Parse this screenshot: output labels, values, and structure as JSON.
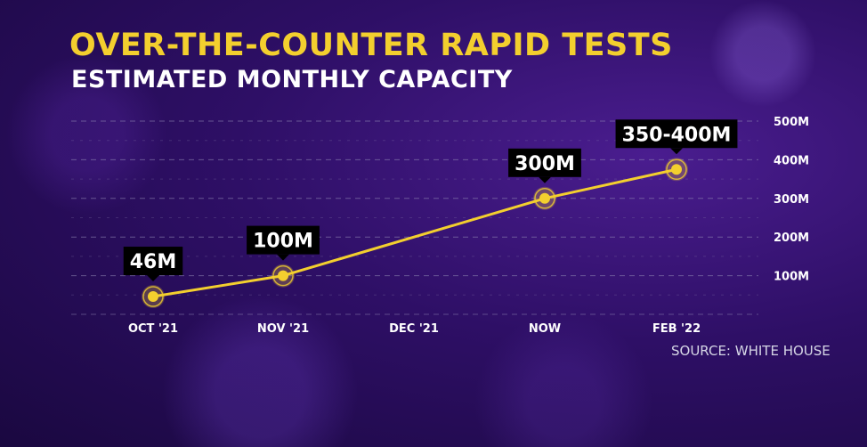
{
  "title": "OVER-THE-COUNTER RAPID TESTS",
  "subtitle": "ESTIMATED MONTHLY CAPACITY",
  "source": "SOURCE: WHITE HOUSE",
  "colors": {
    "accent": "#f3cf2e",
    "background": "#2e0f66",
    "grid": "#8f86b3"
  },
  "chart_data": {
    "type": "line",
    "categories": [
      "OCT '21",
      "NOV '21",
      "DEC '21",
      "NOW",
      "FEB '22"
    ],
    "y_ticks": [
      {
        "value": 100,
        "label": "100M"
      },
      {
        "value": 200,
        "label": "200M"
      },
      {
        "value": 300,
        "label": "300M"
      },
      {
        "value": 400,
        "label": "400M"
      },
      {
        "value": 500,
        "label": "500M"
      }
    ],
    "ylim": [
      0,
      500
    ],
    "grid": true,
    "points": [
      {
        "category": "OCT '21",
        "value": 46,
        "label": "46M"
      },
      {
        "category": "NOV '21",
        "value": 100,
        "label": "100M"
      },
      {
        "category": "NOW",
        "value": 300,
        "label": "300M"
      },
      {
        "category": "FEB '22",
        "value": 375,
        "label": "350-400M"
      }
    ]
  }
}
